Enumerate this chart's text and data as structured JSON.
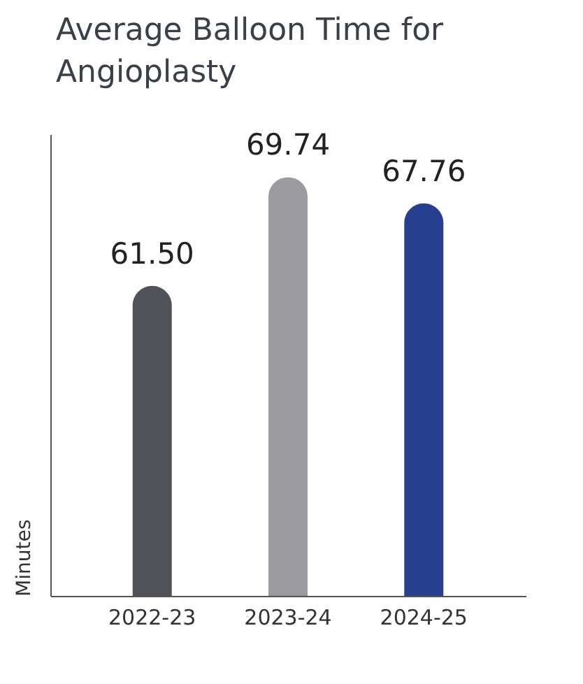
{
  "chart_data": {
    "type": "bar",
    "title": "Average Balloon Time for Angioplasty",
    "ylabel": "Minutes",
    "categories": [
      "2022-23",
      "2023-24",
      "2024-25"
    ],
    "values": [
      61.5,
      69.74,
      67.76
    ],
    "colors": [
      "#4f5259",
      "#9a9a9f",
      "#26408f"
    ],
    "value_labels": [
      "61.50",
      "69.74",
      "67.76"
    ],
    "ylim": [
      38,
      73
    ],
    "tick_labels": "x",
    "grid": false
  }
}
